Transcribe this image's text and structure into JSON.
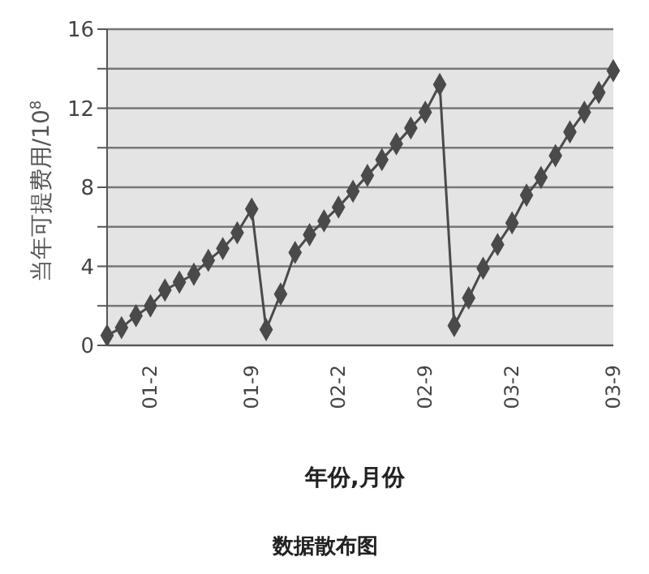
{
  "chart_data": {
    "type": "line",
    "title": "数据散布图",
    "xlabel": "年份,月份",
    "ylabel": "当年可提费用/10$^{8}$",
    "categories": [
      null,
      null,
      null,
      "01-2",
      null,
      null,
      null,
      null,
      null,
      null,
      "01-9",
      null,
      null,
      null,
      null,
      null,
      "02-2",
      null,
      null,
      null,
      null,
      null,
      "02-9",
      null,
      null,
      null,
      null,
      null,
      "03-2",
      null,
      null,
      null,
      null,
      null,
      null,
      "03-9"
    ],
    "series": [
      {
        "color": "#4a4a4a",
        "values": [
          0.5,
          0.9,
          1.5,
          2.0,
          2.8,
          3.2,
          3.6,
          4.3,
          4.9,
          5.7,
          6.9,
          0.8,
          2.6,
          4.7,
          5.6,
          6.3,
          7.0,
          7.8,
          8.6,
          9.4,
          10.2,
          11.0,
          11.8,
          13.2,
          1.0,
          2.4,
          3.9,
          5.1,
          6.2,
          7.6,
          8.5,
          9.6,
          10.8,
          11.8,
          12.8,
          13.9
        ]
      }
    ],
    "ylim": [
      0,
      16
    ],
    "yticks": [
      0,
      {
        "value": 2,
        "label": null
      },
      4,
      {
        "value": 6,
        "label": null
      },
      8,
      {
        "value": 10,
        "label": null
      },
      12,
      {
        "value": 14,
        "label": null
      },
      16
    ],
    "grid": "y",
    "marker": "diamond",
    "line_style": "solid"
  }
}
